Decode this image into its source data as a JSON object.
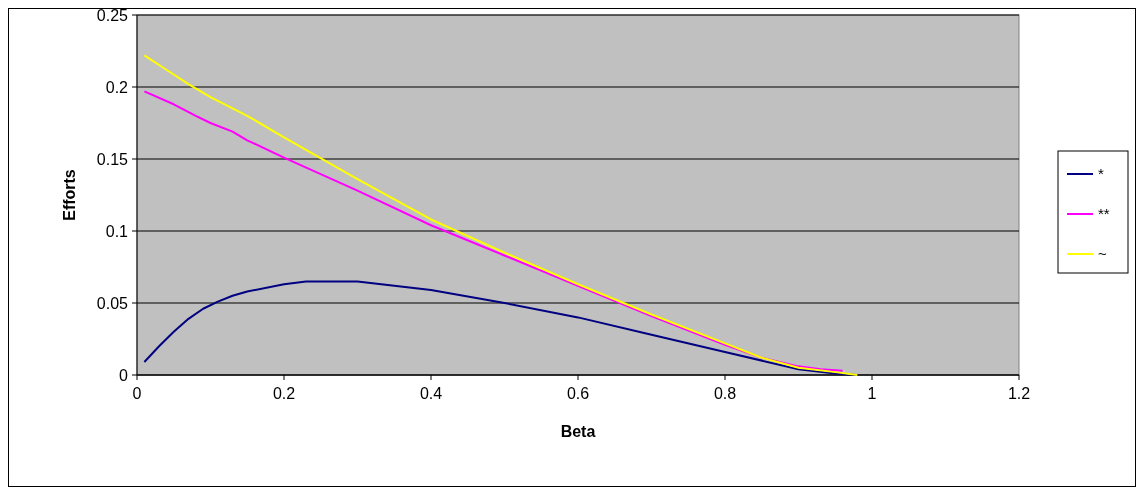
{
  "chart_data": {
    "type": "line",
    "xlabel": "Beta",
    "ylabel": "Efforts",
    "xlim": [
      0,
      1.2
    ],
    "xticks": [
      0,
      0.2,
      0.4,
      0.6,
      0.8,
      1,
      1.2
    ],
    "ylim": [
      0,
      0.25
    ],
    "yticks": [
      0,
      0.05,
      0.1,
      0.15,
      0.2,
      0.25
    ],
    "grid": "y",
    "legend": "right",
    "marker": "none",
    "line_style": "solid",
    "series": [
      {
        "name": "*",
        "color": "#000080",
        "x": [
          0.01,
          0.03,
          0.05,
          0.07,
          0.09,
          0.11,
          0.13,
          0.15,
          0.2,
          0.23,
          0.3,
          0.4,
          0.5,
          0.6,
          0.7,
          0.8,
          0.9,
          0.95,
          0.98
        ],
        "values": [
          0.009,
          0.02,
          0.03,
          0.039,
          0.046,
          0.051,
          0.055,
          0.058,
          0.063,
          0.065,
          0.065,
          0.059,
          0.05,
          0.04,
          0.028,
          0.016,
          0.004,
          0.001,
          0
        ]
      },
      {
        "name": "**",
        "color": "#ff00ff",
        "x": [
          0.01,
          0.05,
          0.08,
          0.1,
          0.13,
          0.15,
          0.2,
          0.3,
          0.4,
          0.5,
          0.6,
          0.7,
          0.8,
          0.85,
          0.9,
          0.93,
          0.96
        ],
        "values": [
          0.197,
          0.188,
          0.18,
          0.175,
          0.169,
          0.163,
          0.151,
          0.128,
          0.104,
          0.083,
          0.062,
          0.041,
          0.021,
          0.012,
          0.006,
          0.004,
          0.003
        ]
      },
      {
        "name": "~",
        "color": "#ffff00",
        "x": [
          0.01,
          0.04,
          0.07,
          0.1,
          0.15,
          0.2,
          0.3,
          0.4,
          0.5,
          0.6,
          0.7,
          0.8,
          0.85,
          0.9,
          0.95,
          0.98
        ],
        "values": [
          0.222,
          0.212,
          0.202,
          0.193,
          0.18,
          0.165,
          0.136,
          0.108,
          0.085,
          0.063,
          0.042,
          0.022,
          0.012,
          0.005,
          0.002,
          0
        ]
      }
    ]
  }
}
